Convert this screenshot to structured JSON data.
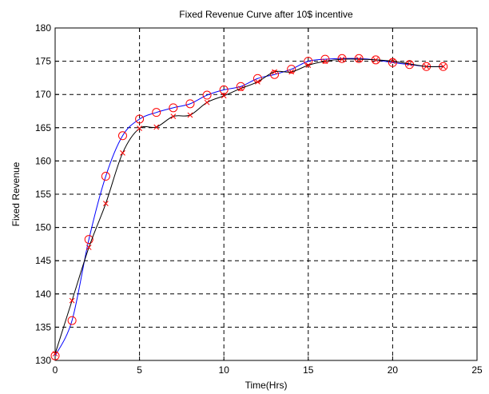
{
  "chart_data": {
    "type": "line",
    "title": "Fixed Revenue Curve after 10$ incentive",
    "xlabel": "Time(Hrs)",
    "ylabel": "Fixed Revenue",
    "xlim": [
      0,
      25
    ],
    "ylim": [
      130,
      180
    ],
    "xticks": [
      0,
      5,
      10,
      15,
      20,
      25
    ],
    "yticks": [
      130,
      135,
      140,
      145,
      150,
      155,
      160,
      165,
      170,
      175,
      180
    ],
    "grid": true,
    "series": [
      {
        "color": "#0000ff",
        "marker": "circle",
        "marker_color": "#ff0000",
        "x": [
          0,
          1,
          2,
          3,
          4,
          5,
          6,
          7,
          8,
          9,
          10,
          11,
          12,
          13,
          14,
          15,
          16,
          17,
          18,
          19,
          20,
          21,
          22,
          23
        ],
        "values": [
          130.7,
          136.0,
          148.2,
          157.7,
          163.8,
          166.3,
          167.3,
          168.0,
          168.6,
          169.9,
          170.7,
          171.2,
          172.4,
          173.0,
          173.8,
          175.0,
          175.3,
          175.4,
          175.4,
          175.2,
          174.8,
          174.5,
          174.2,
          174.2
        ]
      },
      {
        "color": "#000000",
        "marker": "x",
        "marker_color": "#ff0000",
        "x": [
          0,
          1,
          2,
          3,
          4,
          5,
          6,
          7,
          8,
          9,
          10,
          11,
          12,
          13,
          14,
          15,
          16,
          17,
          18,
          19,
          20,
          21,
          22,
          23
        ],
        "values": [
          131.0,
          139.0,
          147.0,
          153.6,
          161.2,
          164.9,
          165.1,
          166.7,
          166.9,
          168.8,
          169.8,
          170.9,
          171.9,
          173.4,
          173.4,
          174.4,
          175.0,
          175.3,
          175.3,
          175.2,
          175.0,
          174.6,
          174.2,
          174.2
        ]
      }
    ]
  }
}
